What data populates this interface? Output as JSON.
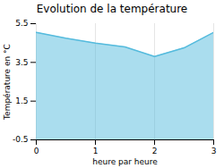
{
  "chart_data": {
    "type": "area",
    "title": "Evolution de la température",
    "xlabel": "heure par heure",
    "ylabel": "Température en °C",
    "x": [
      0,
      0.5,
      1.0,
      1.5,
      2.0,
      2.5,
      3.0
    ],
    "values": [
      5.05,
      4.75,
      4.5,
      4.3,
      3.8,
      4.25,
      5.05
    ],
    "color": "#55bbdd",
    "xlim": [
      0,
      3
    ],
    "ylim": [
      -0.5,
      5.5
    ],
    "xticks": [
      0,
      1,
      2,
      3
    ],
    "yticks": [
      -0.5,
      1.5,
      3.5,
      5.5
    ],
    "grid": "x"
  }
}
